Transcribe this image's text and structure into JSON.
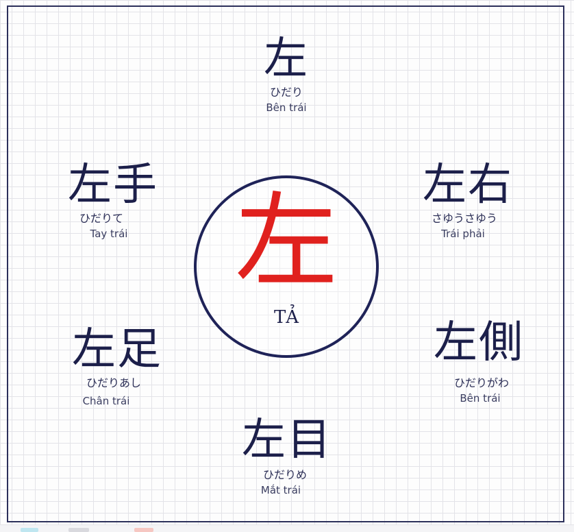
{
  "center": {
    "kanji": "左",
    "label": "TẢ"
  },
  "words": {
    "top": {
      "kanji": "左",
      "reading": "ひだり",
      "meaning": "Bên trái"
    },
    "top_left": {
      "kanji": "左手",
      "reading": "ひだりて",
      "meaning": "Tay trái"
    },
    "top_right": {
      "kanji": "左右",
      "reading": "さゆうさゆう",
      "meaning": "Trái phải"
    },
    "bottom_left": {
      "kanji": "左足",
      "reading": "ひだりあし",
      "meaning": "Chân trái"
    },
    "bottom_right": {
      "kanji": "左側",
      "reading": "ひだりがわ",
      "meaning": "Bên trái"
    },
    "bottom": {
      "kanji": "左目",
      "reading": "ひだりめ",
      "meaning": "Mắt trái"
    }
  },
  "colors": {
    "accent": "#e0211e",
    "ink": "#1c1f4a",
    "frame": "#2b2f5a"
  }
}
